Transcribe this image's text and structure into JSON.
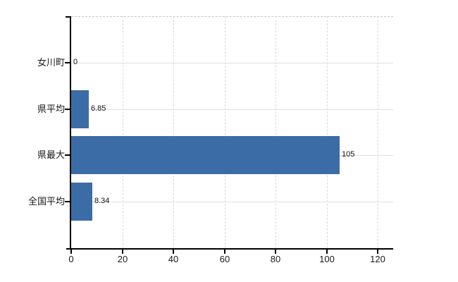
{
  "chart_data": {
    "type": "bar",
    "orientation": "horizontal",
    "title": "",
    "xlabel": "",
    "ylabel": "",
    "categories": [
      "女川町",
      "県平均",
      "県最大",
      "全国平均"
    ],
    "values": [
      0,
      6.85,
      105,
      8.34
    ],
    "value_labels": [
      "0",
      "6.85",
      "105",
      "8.34"
    ],
    "xlim": [
      0,
      126
    ],
    "xticks": [
      0,
      20,
      40,
      60,
      80,
      100,
      120
    ],
    "grid": true,
    "legend": false,
    "legend_position": "none"
  },
  "colors": {
    "background": "#ffffff",
    "bar": "#3C6CA5",
    "axis": "#000000",
    "tick_label": "#1a1a1a",
    "category_label": "#1a1a1a",
    "value_label": "#111111",
    "gridline_horizontal": "#dde2dd",
    "gridline_vertical": "#d9d9d9",
    "plot_border_top": "#c8c8c8"
  }
}
